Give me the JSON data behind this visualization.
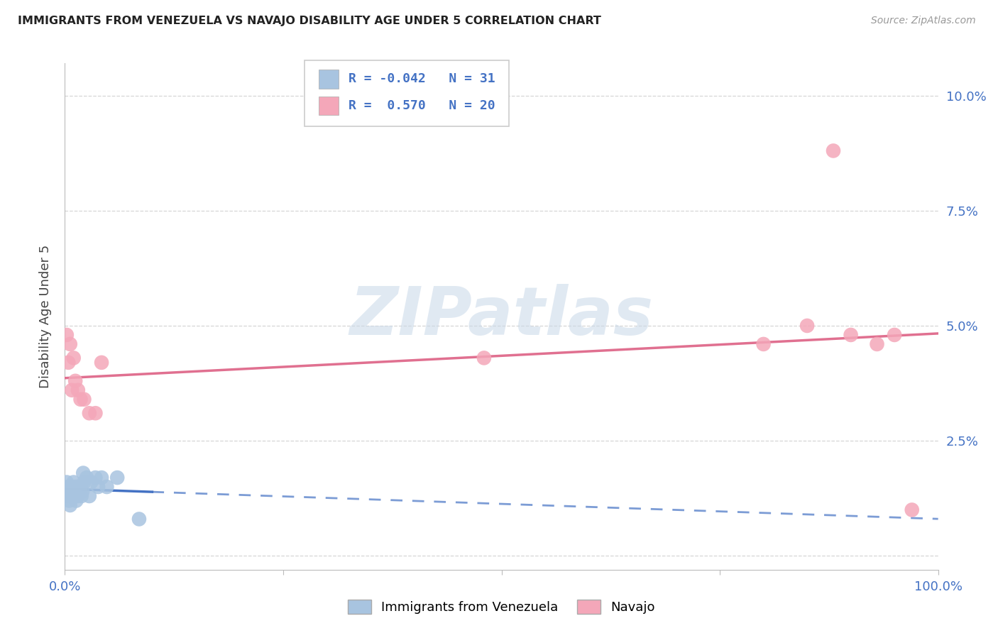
{
  "title": "IMMIGRANTS FROM VENEZUELA VS NAVAJO DISABILITY AGE UNDER 5 CORRELATION CHART",
  "source": "Source: ZipAtlas.com",
  "ylabel": "Disability Age Under 5",
  "xlim": [
    0,
    1.0
  ],
  "ylim": [
    -0.003,
    0.107
  ],
  "blue_color": "#a8c4e0",
  "pink_color": "#f4a7b9",
  "blue_line_color": "#4472c4",
  "pink_line_color": "#e07090",
  "blue_R": "-0.042",
  "blue_N": "31",
  "pink_R": "0.570",
  "pink_N": "20",
  "legend_blue_label": "Immigrants from Venezuela",
  "legend_pink_label": "Navajo",
  "watermark_text": "ZIPatlas",
  "blue_x": [
    0.001,
    0.002,
    0.003,
    0.004,
    0.005,
    0.006,
    0.007,
    0.008,
    0.009,
    0.01,
    0.011,
    0.012,
    0.013,
    0.014,
    0.015,
    0.016,
    0.017,
    0.018,
    0.019,
    0.02,
    0.021,
    0.022,
    0.025,
    0.028,
    0.03,
    0.035,
    0.038,
    0.042,
    0.048,
    0.06,
    0.085
  ],
  "blue_y": [
    0.014,
    0.016,
    0.013,
    0.015,
    0.012,
    0.011,
    0.015,
    0.014,
    0.013,
    0.016,
    0.014,
    0.015,
    0.012,
    0.013,
    0.015,
    0.014,
    0.014,
    0.015,
    0.013,
    0.014,
    0.018,
    0.016,
    0.017,
    0.013,
    0.016,
    0.017,
    0.015,
    0.017,
    0.015,
    0.017,
    0.008
  ],
  "pink_x": [
    0.002,
    0.004,
    0.006,
    0.008,
    0.01,
    0.012,
    0.015,
    0.018,
    0.022,
    0.028,
    0.035,
    0.042,
    0.48,
    0.8,
    0.85,
    0.88,
    0.9,
    0.93,
    0.95,
    0.97
  ],
  "pink_y": [
    0.048,
    0.042,
    0.046,
    0.036,
    0.043,
    0.038,
    0.036,
    0.034,
    0.034,
    0.031,
    0.031,
    0.042,
    0.043,
    0.046,
    0.05,
    0.088,
    0.048,
    0.046,
    0.048,
    0.01
  ]
}
